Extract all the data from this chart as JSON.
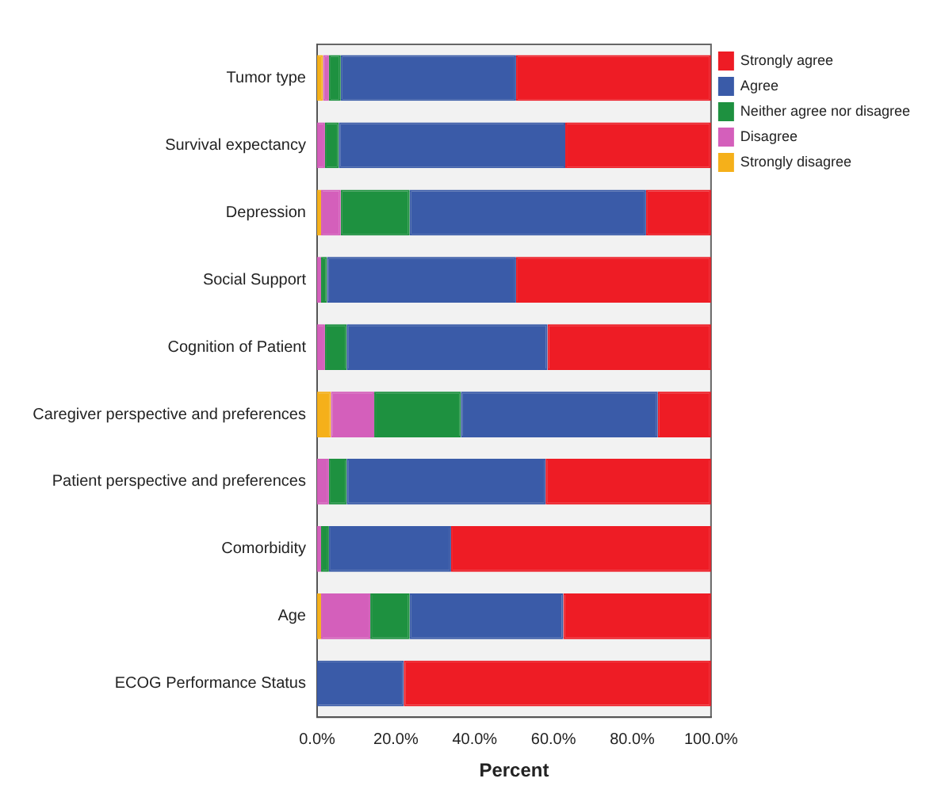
{
  "chart_data": {
    "type": "bar",
    "orientation": "horizontal",
    "stacked": true,
    "xlabel": "Percent",
    "categories": [
      "Tumor type",
      "Survival expectancy",
      "Depression",
      "Social Support",
      "Cognition of Patient",
      "Caregiver perspective and preferences",
      "Patient perspective and preferences",
      "Comorbidity",
      "Age",
      "ECOG Performance Status"
    ],
    "series": [
      {
        "name": "Strongly disagree",
        "color": "#f5b01a",
        "values": [
          1.5,
          0,
          1,
          0,
          0,
          3.5,
          0,
          0,
          1,
          0
        ]
      },
      {
        "name": "Disagree",
        "color": "#d45fbb",
        "values": [
          1.5,
          2,
          5,
          1,
          2,
          11,
          3,
          1,
          12.5,
          0
        ]
      },
      {
        "name": "Neither agree nor disagree",
        "color": "#1e9140",
        "values": [
          3,
          3.5,
          17.5,
          1.5,
          5.5,
          22,
          4.5,
          2,
          10,
          0
        ]
      },
      {
        "name": "Agree",
        "color": "#3a5ba8",
        "values": [
          44.5,
          57.5,
          60,
          48,
          51,
          50,
          50.5,
          31,
          39,
          22
        ]
      },
      {
        "name": "Strongly agree",
        "color": "#ee1c25",
        "values": [
          49.5,
          37,
          16.5,
          49.5,
          41.5,
          13.5,
          42,
          66,
          37.5,
          78
        ]
      }
    ],
    "xlim": [
      0,
      100
    ],
    "xticks": [
      {
        "value": 0,
        "label": "0.0%"
      },
      {
        "value": 20,
        "label": "20.0%"
      },
      {
        "value": 40,
        "label": "40.0%"
      },
      {
        "value": 60,
        "label": "60.0%"
      },
      {
        "value": 80,
        "label": "80.0%"
      },
      {
        "value": 100,
        "label": "100.0%"
      }
    ],
    "grid": false,
    "legend": "top right"
  }
}
